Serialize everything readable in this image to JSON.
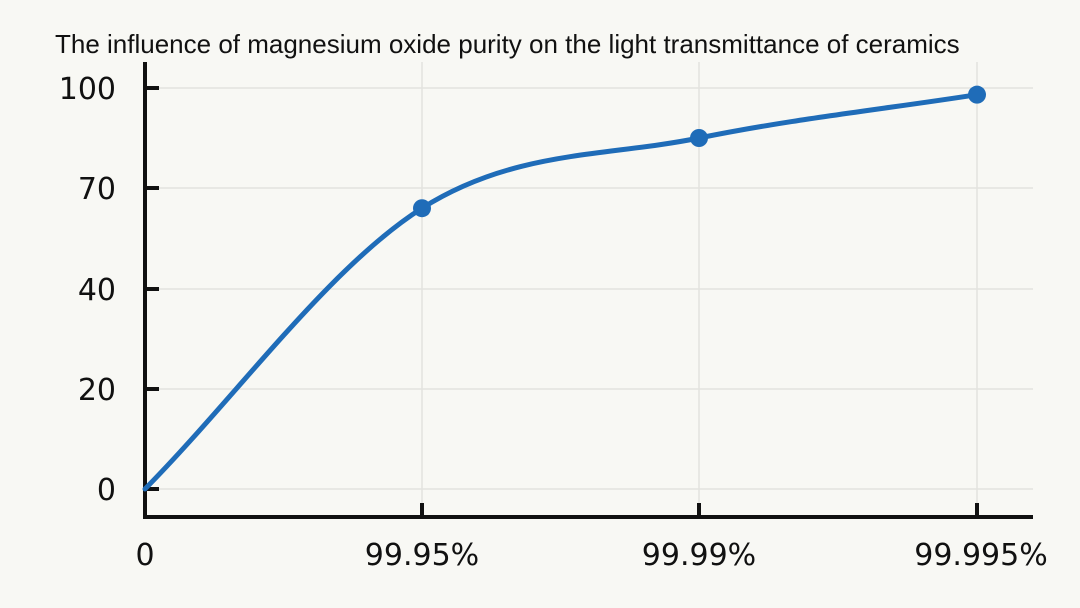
{
  "chart_data": {
    "type": "line",
    "title": "The influence of magnesium oxide purity on the light transmittance of ceramics",
    "xlabel": "",
    "ylabel": "",
    "x_categories": [
      "0",
      "99.95%",
      "99.99%",
      "99.995%"
    ],
    "y_ticks": [
      0,
      20,
      40,
      70,
      100
    ],
    "grid": true,
    "series": [
      {
        "color": "#1f6cb8",
        "values": [
          0,
          64,
          85,
          98
        ],
        "markers": [
          false,
          true,
          true,
          true
        ]
      }
    ]
  }
}
